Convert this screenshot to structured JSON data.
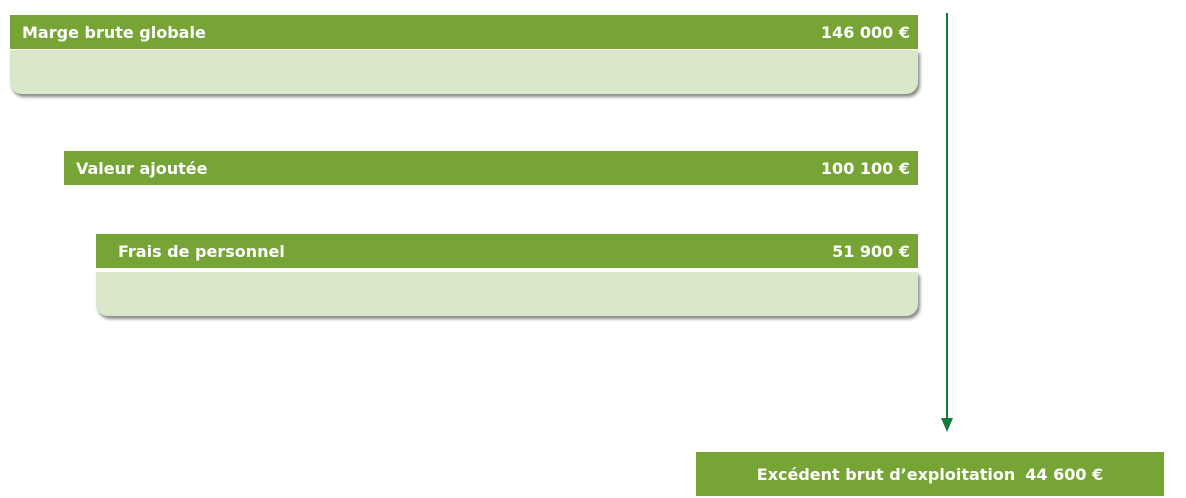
{
  "rows": [
    {
      "label": "Marge brute globale",
      "amount": "146 000 €"
    },
    {
      "label": "Valeur ajoutée",
      "amount": "100 100 €"
    },
    {
      "label": "Frais de personnel",
      "amount": "51 900 €"
    }
  ],
  "result": {
    "label": "Excédent brut d’exploitation",
    "amount": "44 600 €"
  }
}
